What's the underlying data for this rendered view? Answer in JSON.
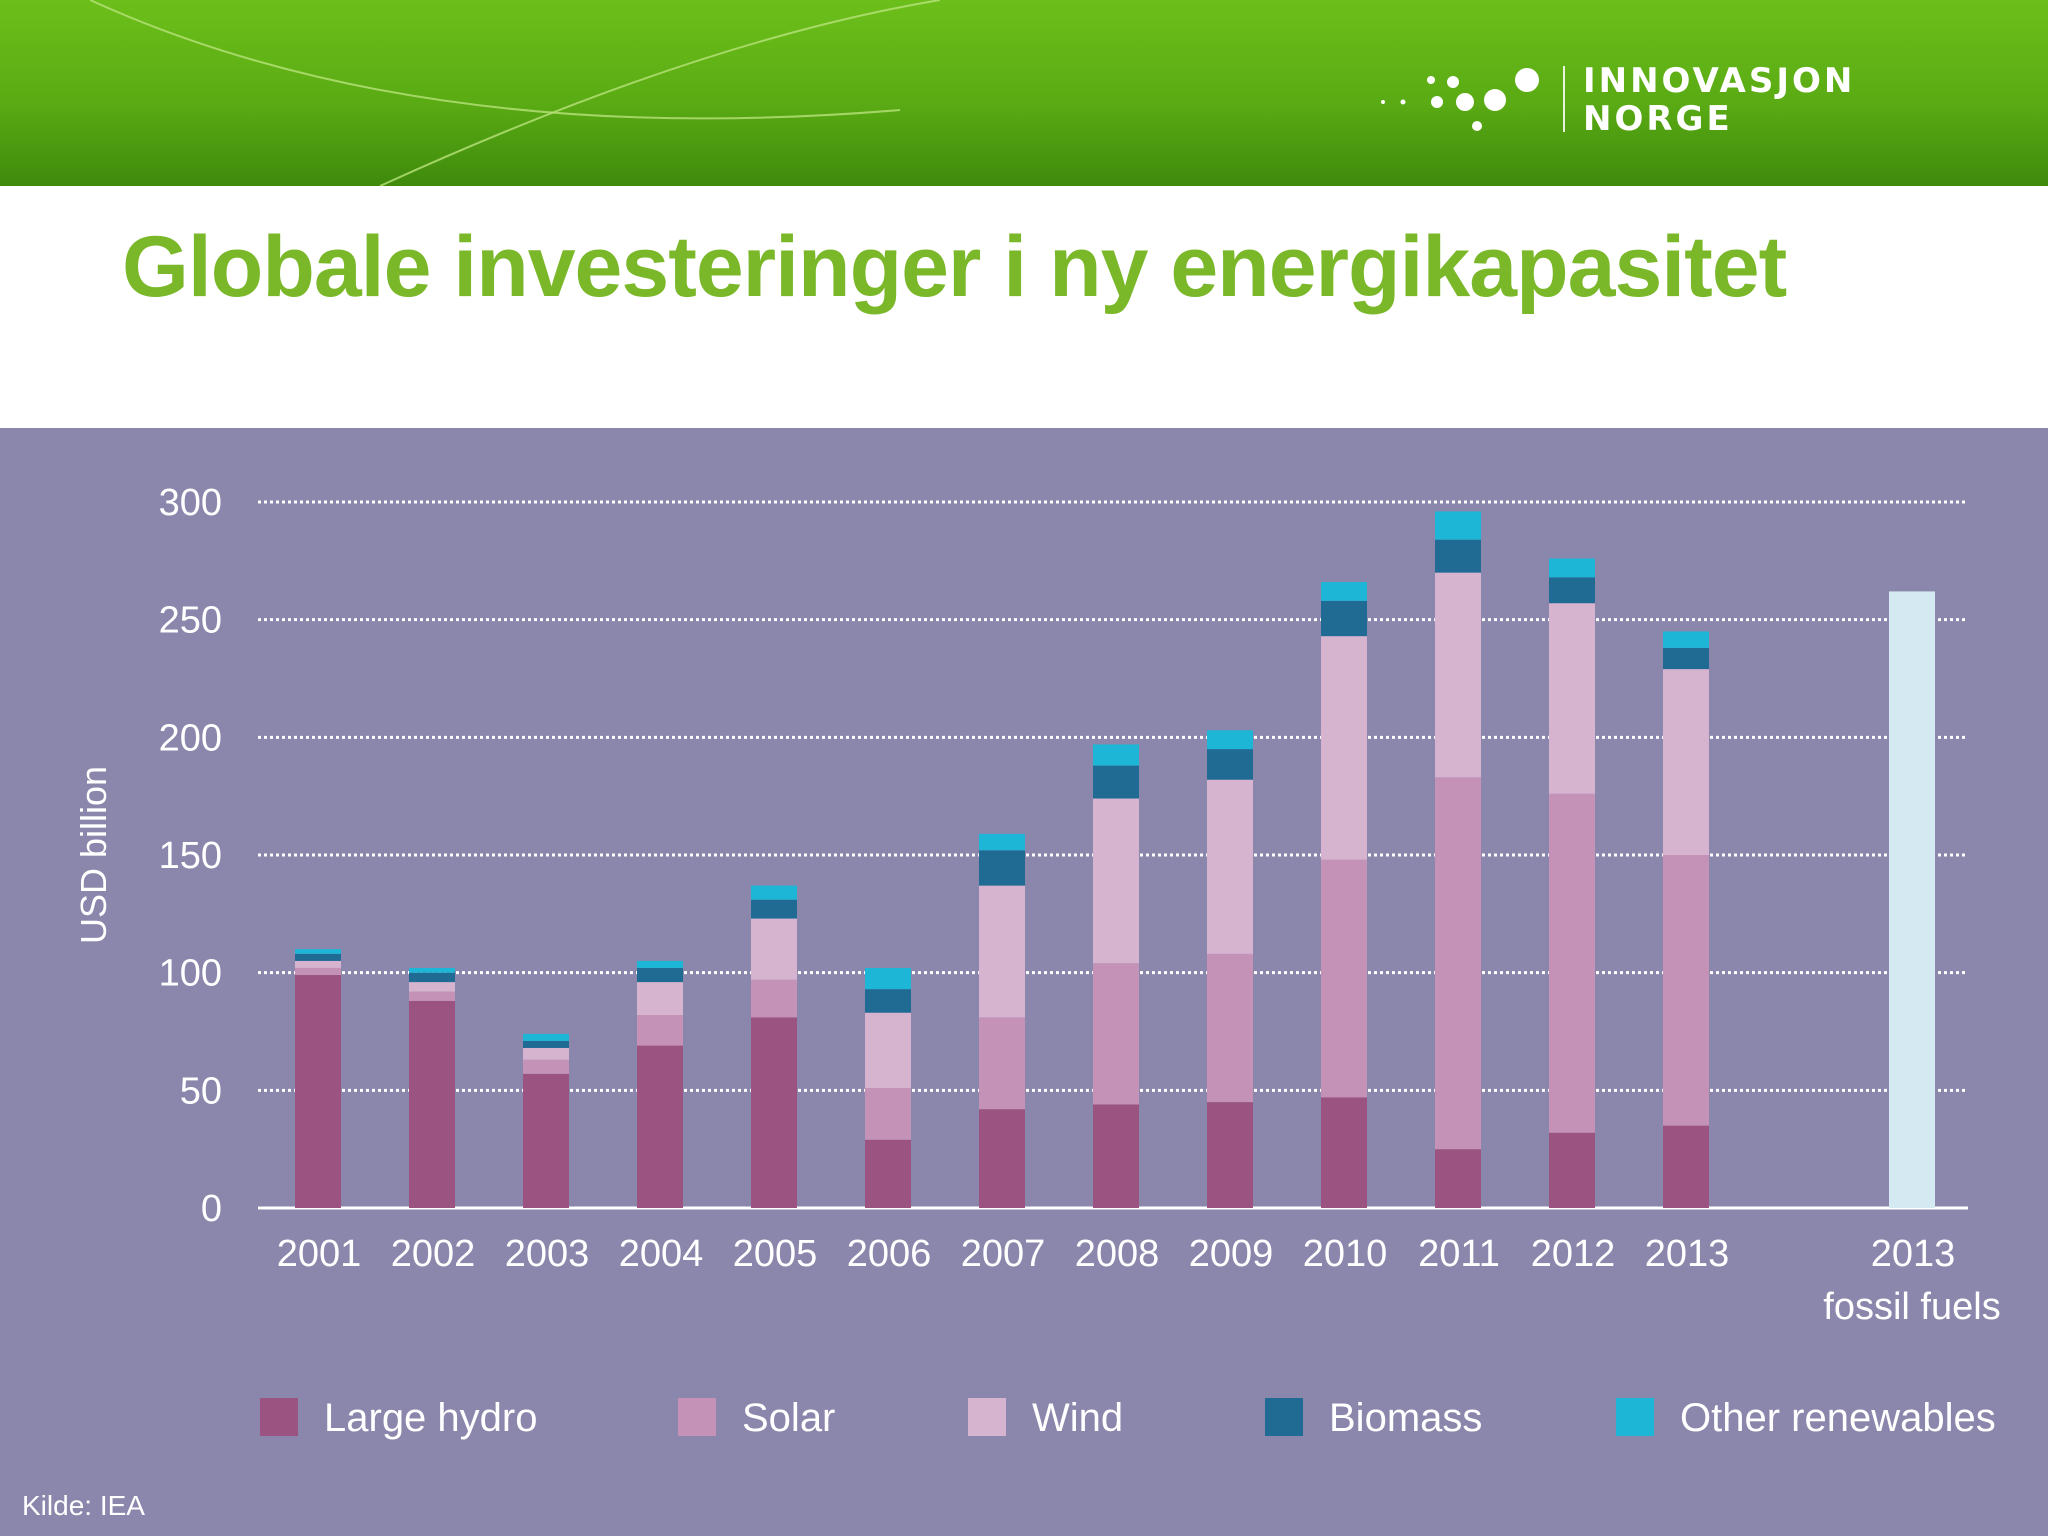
{
  "header": {
    "logo_line1": "INNOVASJON",
    "logo_line2": "NORGE"
  },
  "title": "Globale investeringer i ny energikapasitet",
  "source_note": "Kilde: IEA",
  "colors": {
    "header_green": "#5aab14",
    "title_green": "#7ab82a",
    "panel_bg": "#8b86ab",
    "large_hydro": "#9b5482",
    "solar": "#c492b6",
    "wind": "#d6b4d0",
    "biomass": "#1f6b93",
    "other_renewables": "#1eb6d6",
    "fossil": "#d5e9f3"
  },
  "chart_data": {
    "type": "bar",
    "stacked": true,
    "title": "",
    "ylabel": "USD billion",
    "xlabel": "",
    "ylim": [
      0,
      300
    ],
    "yticks": [
      0,
      50,
      100,
      150,
      200,
      250,
      300
    ],
    "grid": "horizontal dotted",
    "legend_position": "bottom",
    "categories": [
      "2001",
      "2002",
      "2003",
      "2004",
      "2005",
      "2006",
      "2007",
      "2008",
      "2009",
      "2010",
      "2011",
      "2012",
      "2013",
      "2013 fossil fuels"
    ],
    "series": [
      {
        "name": "Large hydro",
        "color": "#9b5482",
        "values": [
          99,
          88,
          57,
          69,
          81,
          29,
          42,
          44,
          45,
          47,
          25,
          32,
          35,
          0
        ]
      },
      {
        "name": "Solar",
        "color": "#c492b6",
        "values": [
          3,
          4,
          6,
          13,
          16,
          22,
          39,
          60,
          63,
          101,
          158,
          144,
          115,
          0
        ]
      },
      {
        "name": "Wind",
        "color": "#d6b4d0",
        "values": [
          3,
          4,
          5,
          14,
          26,
          32,
          56,
          70,
          74,
          95,
          87,
          81,
          79,
          0
        ]
      },
      {
        "name": "Biomass",
        "color": "#1f6b93",
        "values": [
          3,
          4,
          3,
          6,
          8,
          10,
          15,
          14,
          13,
          15,
          14,
          11,
          9,
          0
        ]
      },
      {
        "name": "Other renewables",
        "color": "#1eb6d6",
        "values": [
          2,
          2,
          3,
          3,
          6,
          9,
          7,
          9,
          8,
          8,
          12,
          8,
          7,
          0
        ]
      }
    ],
    "fossil_fuels_2013": {
      "value": 262,
      "color": "#d5e9f3"
    },
    "category_labels": [
      {
        "line1": "2001"
      },
      {
        "line1": "2002"
      },
      {
        "line1": "2003"
      },
      {
        "line1": "2004"
      },
      {
        "line1": "2005"
      },
      {
        "line1": "2006"
      },
      {
        "line1": "2007"
      },
      {
        "line1": "2008"
      },
      {
        "line1": "2009"
      },
      {
        "line1": "2010"
      },
      {
        "line1": "2011"
      },
      {
        "line1": "2012"
      },
      {
        "line1": "2013"
      },
      {
        "line1": "2013",
        "line2": "fossil fuels"
      }
    ]
  }
}
